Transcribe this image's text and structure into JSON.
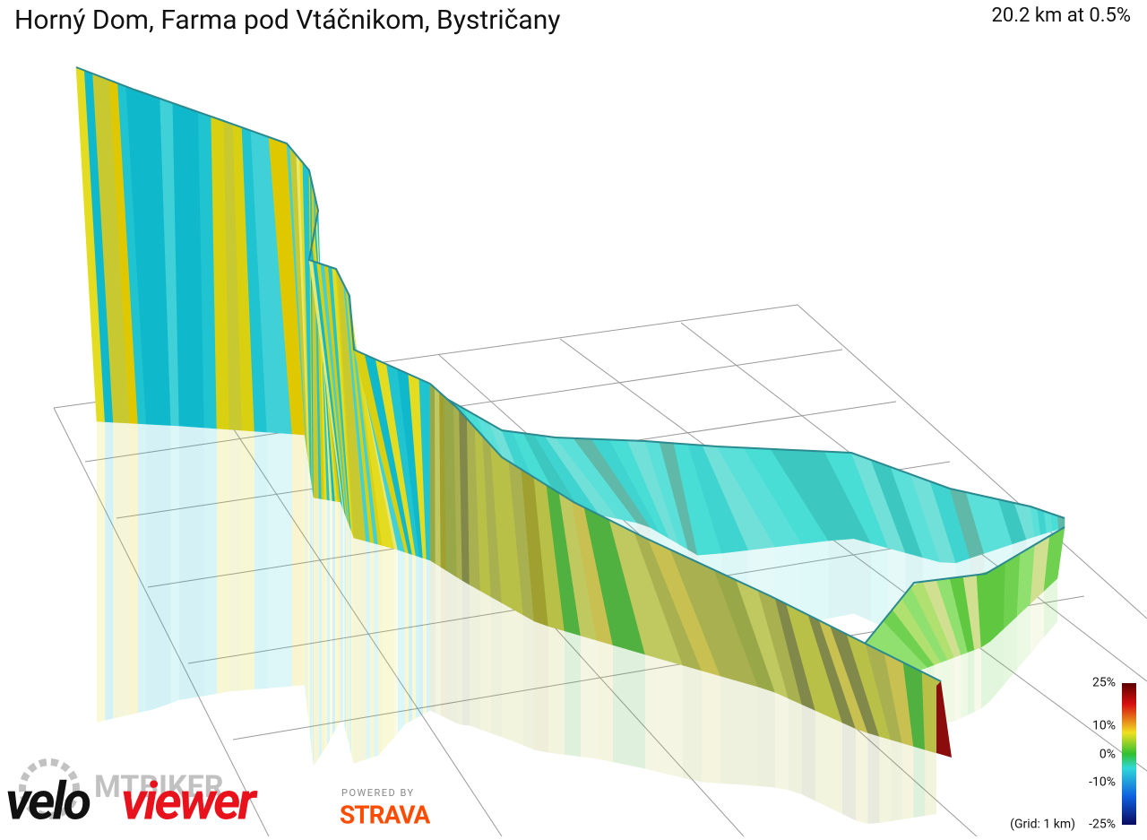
{
  "header": {
    "title": "Horný Dom, Farma pod Vtáčnikom, Bystričany",
    "stats": "20.2 km at 0.5%"
  },
  "legend": {
    "labels": [
      "25%",
      "10%",
      "0%",
      "-10%",
      "-25%"
    ],
    "grid_note": "(Grid: 1 km)"
  },
  "branding": {
    "velo": "velo",
    "viewer": "viewer",
    "powered_by": "POWERED BY",
    "strava": "STRAVA",
    "watermark": "MTBIKER"
  }
}
